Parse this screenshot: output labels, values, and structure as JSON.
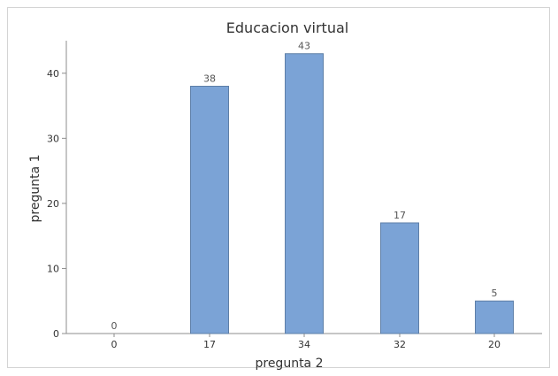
{
  "chart_data": {
    "type": "bar",
    "title": "Educacion virtual",
    "xlabel": "pregunta 2",
    "ylabel": "pregunta 1",
    "categories": [
      "0",
      "17",
      "34",
      "32",
      "20"
    ],
    "values": [
      0,
      38,
      43,
      17,
      5
    ],
    "data_labels": [
      "0",
      "38",
      "43",
      "17",
      "5"
    ],
    "ylim": [
      0,
      45
    ],
    "yticks": [
      0,
      10,
      20,
      30,
      40
    ],
    "grid": false,
    "bar_color": "#7ba3d6",
    "bar_edge_color": "#5e7fa8"
  }
}
